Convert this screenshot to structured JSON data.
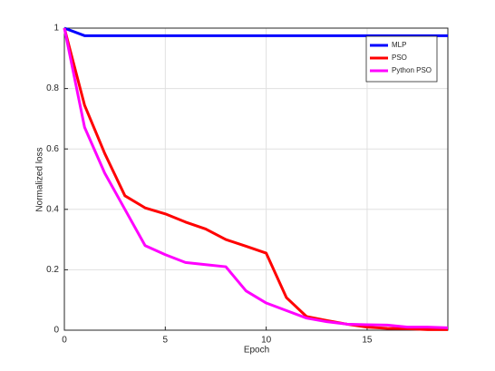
{
  "chart_data": {
    "type": "line",
    "x_label": "Epoch",
    "y_label": "Normalized loss",
    "x": [
      0,
      1,
      2,
      3,
      4,
      5,
      6,
      7,
      8,
      9,
      10,
      11,
      12,
      13,
      14,
      15,
      16,
      17,
      18,
      19
    ],
    "series": [
      {
        "name": "MLP",
        "color": "#0000ff",
        "values": [
          1,
          0.975,
          0.975,
          0.975,
          0.975,
          0.975,
          0.975,
          0.975,
          0.975,
          0.975,
          0.975,
          0.975,
          0.975,
          0.975,
          0.975,
          0.975,
          0.975,
          0.975,
          0.975,
          0.975
        ]
      },
      {
        "name": "PSO",
        "color": "#ff0000",
        "values": [
          1,
          0.745,
          0.585,
          0.445,
          0.405,
          0.385,
          0.358,
          0.335,
          0.3,
          0.278,
          0.255,
          0.108,
          0.045,
          0.032,
          0.02,
          0.01,
          0.006,
          0.005,
          0.002,
          0.002
        ]
      },
      {
        "name": "Python PSO",
        "color": "#ff00ff",
        "values": [
          1,
          0.672,
          0.52,
          0.4,
          0.28,
          0.25,
          0.224,
          0.217,
          0.21,
          0.13,
          0.09,
          0.065,
          0.04,
          0.028,
          0.02,
          0.018,
          0.017,
          0.01,
          0.01,
          0.008
        ]
      }
    ],
    "xlim": [
      0,
      19
    ],
    "xticks": [
      0,
      5,
      10,
      15
    ],
    "ylim": [
      0,
      1
    ],
    "yticks": [
      0,
      0.2,
      0.4,
      0.6,
      0.8,
      1
    ],
    "grid": true,
    "legend": "top-right"
  }
}
